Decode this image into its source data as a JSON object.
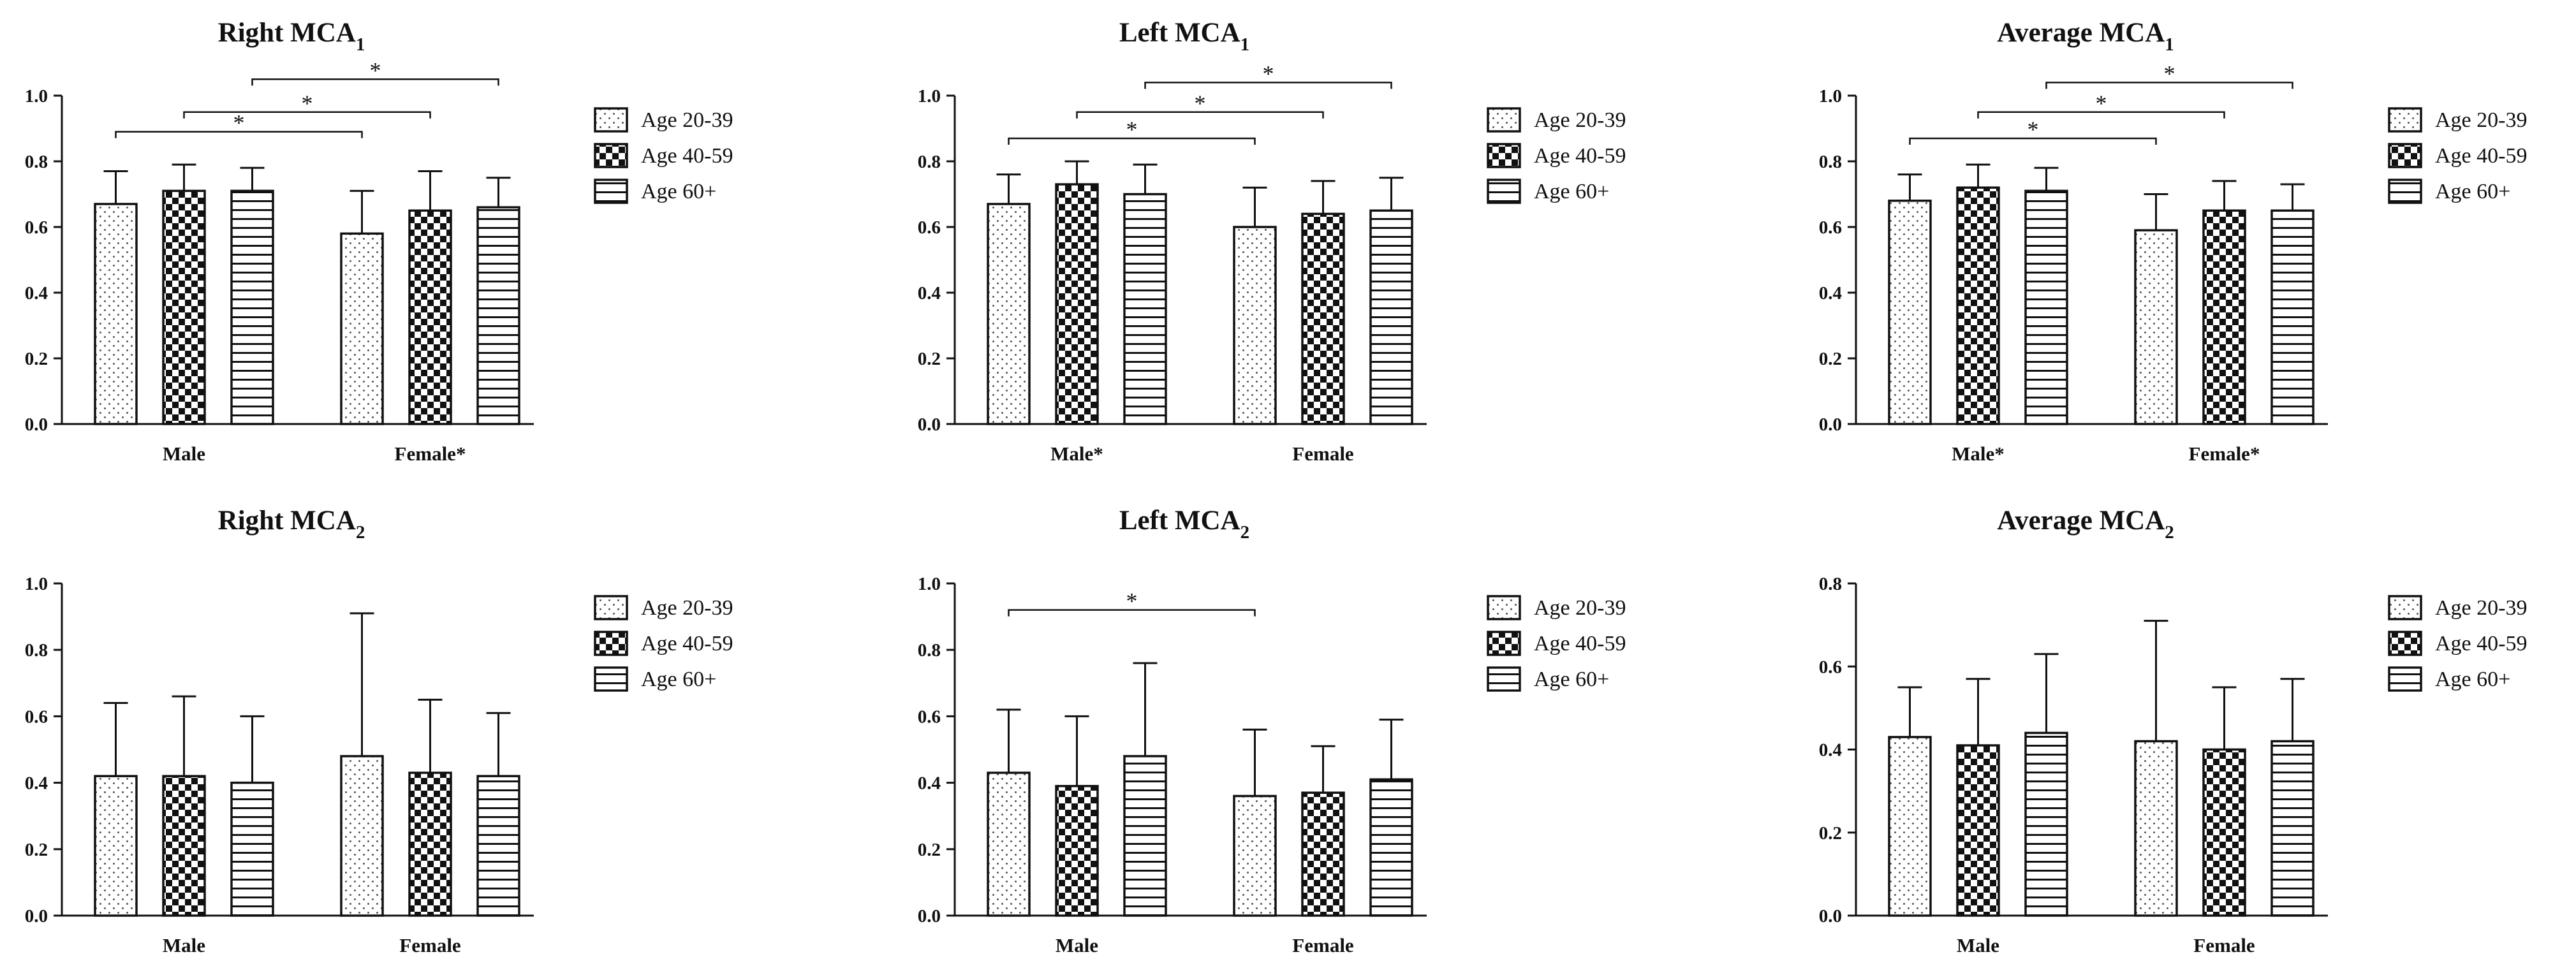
{
  "figure": {
    "description": "Six bar charts of MCA values by sex and age group"
  },
  "legend": [
    "Age 20-39",
    "Age 40-59",
    "Age 60+"
  ],
  "patterns": [
    "dots",
    "checker",
    "hstripes"
  ],
  "chart_data": [
    {
      "type": "bar",
      "title": "Right MCA",
      "title_sub": "1",
      "categories": [
        "Male",
        "Female*"
      ],
      "ylim": [
        0,
        1.0
      ],
      "yticks": [
        "0.0",
        "0.2",
        "0.4",
        "0.6",
        "0.8",
        "1.0"
      ],
      "series": [
        {
          "name": "Age 20-39",
          "values": [
            0.67,
            0.58
          ],
          "errors": [
            0.1,
            0.13
          ]
        },
        {
          "name": "Age 40-59",
          "values": [
            0.71,
            0.65
          ],
          "errors": [
            0.08,
            0.12
          ]
        },
        {
          "name": "Age 60+",
          "values": [
            0.71,
            0.66
          ],
          "errors": [
            0.07,
            0.09
          ]
        }
      ],
      "significance": [
        {
          "label": "*",
          "from": [
            0,
            0
          ],
          "to": [
            1,
            0
          ],
          "level": 0.89
        },
        {
          "label": "*",
          "from": [
            0,
            1
          ],
          "to": [
            1,
            1
          ],
          "level": 0.95
        },
        {
          "label": "*",
          "from": [
            0,
            2
          ],
          "to": [
            1,
            2
          ],
          "level": 1.05
        }
      ]
    },
    {
      "type": "bar",
      "title": "Left MCA",
      "title_sub": "1",
      "categories": [
        "Male*",
        "Female"
      ],
      "ylim": [
        0,
        1.0
      ],
      "yticks": [
        "0.0",
        "0.2",
        "0.4",
        "0.6",
        "0.8",
        "1.0"
      ],
      "series": [
        {
          "name": "Age 20-39",
          "values": [
            0.67,
            0.6
          ],
          "errors": [
            0.09,
            0.12
          ]
        },
        {
          "name": "Age 40-59",
          "values": [
            0.73,
            0.64
          ],
          "errors": [
            0.07,
            0.1
          ]
        },
        {
          "name": "Age 60+",
          "values": [
            0.7,
            0.65
          ],
          "errors": [
            0.09,
            0.1
          ]
        }
      ],
      "significance": [
        {
          "label": "*",
          "from": [
            0,
            0
          ],
          "to": [
            1,
            0
          ],
          "level": 0.87
        },
        {
          "label": "*",
          "from": [
            0,
            1
          ],
          "to": [
            1,
            1
          ],
          "level": 0.95
        },
        {
          "label": "*",
          "from": [
            0,
            2
          ],
          "to": [
            1,
            2
          ],
          "level": 1.04
        }
      ]
    },
    {
      "type": "bar",
      "title": "Average MCA",
      "title_sub": "1",
      "categories": [
        "Male*",
        "Female*"
      ],
      "ylim": [
        0,
        1.0
      ],
      "yticks": [
        "0.0",
        "0.2",
        "0.4",
        "0.6",
        "0.8",
        "1.0"
      ],
      "series": [
        {
          "name": "Age 20-39",
          "values": [
            0.68,
            0.59
          ],
          "errors": [
            0.08,
            0.11
          ]
        },
        {
          "name": "Age 40-59",
          "values": [
            0.72,
            0.65
          ],
          "errors": [
            0.07,
            0.09
          ]
        },
        {
          "name": "Age 60+",
          "values": [
            0.71,
            0.65
          ],
          "errors": [
            0.07,
            0.08
          ]
        }
      ],
      "significance": [
        {
          "label": "*",
          "from": [
            0,
            0
          ],
          "to": [
            1,
            0
          ],
          "level": 0.87
        },
        {
          "label": "*",
          "from": [
            0,
            1
          ],
          "to": [
            1,
            1
          ],
          "level": 0.95
        },
        {
          "label": "*",
          "from": [
            0,
            2
          ],
          "to": [
            1,
            2
          ],
          "level": 1.04
        }
      ]
    },
    {
      "type": "bar",
      "title": "Right MCA",
      "title_sub": "2",
      "categories": [
        "Male",
        "Female"
      ],
      "ylim": [
        0,
        1.0
      ],
      "yticks": [
        "0.0",
        "0.2",
        "0.4",
        "0.6",
        "0.8",
        "1.0"
      ],
      "series": [
        {
          "name": "Age 20-39",
          "values": [
            0.42,
            0.48
          ],
          "errors": [
            0.22,
            0.43
          ]
        },
        {
          "name": "Age 40-59",
          "values": [
            0.42,
            0.43
          ],
          "errors": [
            0.24,
            0.22
          ]
        },
        {
          "name": "Age 60+",
          "values": [
            0.4,
            0.42
          ],
          "errors": [
            0.2,
            0.19
          ]
        }
      ],
      "significance": []
    },
    {
      "type": "bar",
      "title": "Left MCA",
      "title_sub": "2",
      "categories": [
        "Male",
        "Female"
      ],
      "ylim": [
        0,
        1.0
      ],
      "yticks": [
        "0.0",
        "0.2",
        "0.4",
        "0.6",
        "0.8",
        "1.0"
      ],
      "series": [
        {
          "name": "Age 20-39",
          "values": [
            0.43,
            0.36
          ],
          "errors": [
            0.19,
            0.2
          ]
        },
        {
          "name": "Age 40-59",
          "values": [
            0.39,
            0.37
          ],
          "errors": [
            0.21,
            0.14
          ]
        },
        {
          "name": "Age 60+",
          "values": [
            0.48,
            0.41
          ],
          "errors": [
            0.28,
            0.18
          ]
        }
      ],
      "significance": [
        {
          "label": "*",
          "from": [
            0,
            0
          ],
          "to": [
            1,
            0
          ],
          "level": 0.92
        }
      ]
    },
    {
      "type": "bar",
      "title": "Average MCA",
      "title_sub": "2",
      "categories": [
        "Male",
        "Female"
      ],
      "ylim": [
        0,
        0.8
      ],
      "yticks": [
        "0.0",
        "0.2",
        "0.4",
        "0.6",
        "0.8"
      ],
      "series": [
        {
          "name": "Age 20-39",
          "values": [
            0.43,
            0.42
          ],
          "errors": [
            0.12,
            0.29
          ]
        },
        {
          "name": "Age 40-59",
          "values": [
            0.41,
            0.4
          ],
          "errors": [
            0.16,
            0.15
          ]
        },
        {
          "name": "Age 60+",
          "values": [
            0.44,
            0.42
          ],
          "errors": [
            0.19,
            0.15
          ]
        }
      ],
      "significance": []
    }
  ]
}
